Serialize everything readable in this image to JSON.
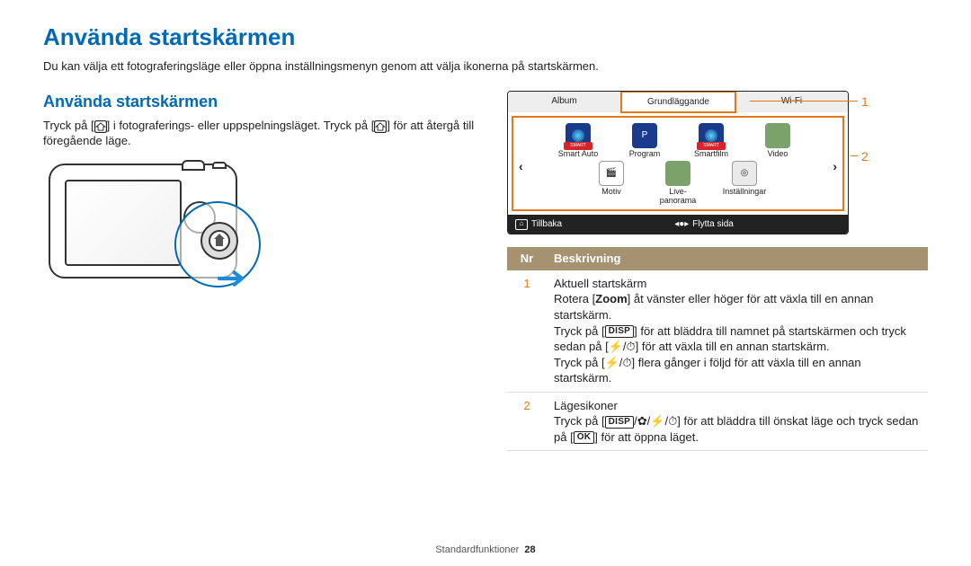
{
  "title": "Använda startskärmen",
  "lead": "Du kan välja ett fotograferingsläge eller öppna inställningsmenyn genom att välja ikonerna på startskärmen.",
  "subhead": "Använda startskärmen",
  "para1_a": "Tryck på [",
  "para1_b": "] i fotograferings- eller uppspelningsläget. Tryck på [",
  "para1_c": "] för att återgå till föregående läge.",
  "screen": {
    "tabs": [
      "Album",
      "Grundläggande",
      "Wi-Fi"
    ],
    "active_tab_index": 1,
    "row1": [
      {
        "label": "Smart Auto",
        "bg": "#1a3b8c",
        "badge": "SMART",
        "badge_bg": "#d8232a"
      },
      {
        "label": "Program",
        "bg": "#1a3b8c",
        "text": "P"
      },
      {
        "label": "Smartfilm",
        "bg": "#1a3b8c",
        "badge": "SMART",
        "badge_bg": "#d8232a"
      },
      {
        "label": "Video",
        "bg": "#7aa26a",
        "text": ""
      }
    ],
    "row2": [
      {
        "label": "Motiv",
        "bg": "#ffffff",
        "text": "🎬",
        "border": "#999"
      },
      {
        "label": "Live-panorama",
        "bg": "#7aa26a",
        "text": ""
      },
      {
        "label": "Inställningar",
        "bg": "#eaeaea",
        "text": "◎",
        "border": "#999"
      }
    ],
    "footer_back": "Tillbaka",
    "footer_move": "Flytta sida",
    "callout_1": "1",
    "callout_2": "2"
  },
  "table": {
    "headers": [
      "Nr",
      "Beskrivning"
    ],
    "rows": [
      {
        "nr": "1",
        "lines": [
          {
            "plain": "Aktuell startskärm"
          },
          {
            "t": [
              "Rotera [",
              {
                "b": "Zoom"
              },
              "] åt vänster eller höger för att växla till en annan startskärm."
            ]
          },
          {
            "t": [
              "Tryck på [",
              {
                "btn": "DISP"
              },
              "] för att bläddra till namnet på startskärmen och tryck sedan på [",
              {
                "g": "⚡"
              },
              "/",
              {
                "g": "⏱"
              },
              "] för att växla till en annan startskärm."
            ]
          },
          {
            "t": [
              "Tryck på [",
              {
                "g": "⚡"
              },
              "/",
              {
                "g": "⏱"
              },
              "] flera gånger i följd för att växla till en annan startskärm."
            ]
          }
        ]
      },
      {
        "nr": "2",
        "lines": [
          {
            "plain": "Lägesikoner"
          },
          {
            "t": [
              "Tryck på [",
              {
                "btn": "DISP"
              },
              "/",
              {
                "g": "✿"
              },
              "/",
              {
                "g": "⚡"
              },
              "/",
              {
                "g": "⏱"
              },
              "] för att bläddra till önskat läge och tryck sedan på [",
              {
                "btn": "OK"
              },
              "] för att öppna läget."
            ]
          }
        ]
      }
    ]
  },
  "footer": {
    "section": "Standardfunktioner",
    "page": "28"
  },
  "colors": {
    "accent": "#006ab6",
    "callout": "#e07a1a",
    "th_bg": "#a69271"
  }
}
